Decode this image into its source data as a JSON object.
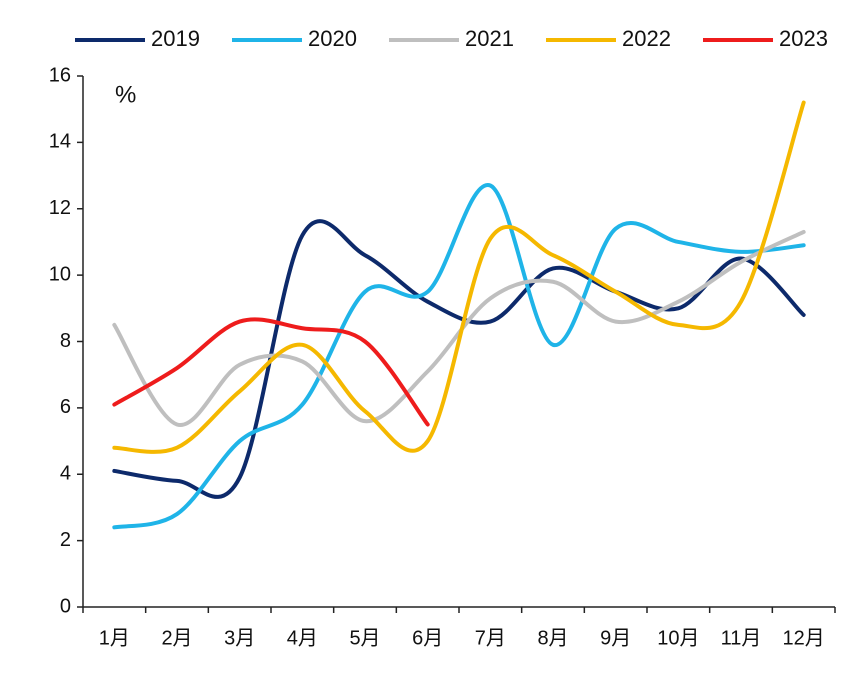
{
  "chart_data": {
    "type": "line",
    "unit_label": "%",
    "categories": [
      "1月",
      "2月",
      "3月",
      "4月",
      "5月",
      "6月",
      "7月",
      "8月",
      "9月",
      "10月",
      "11月",
      "12月"
    ],
    "series": [
      {
        "name": "2019",
        "color": "#0d2a6b",
        "values": [
          4.1,
          3.8,
          3.9,
          11.2,
          10.6,
          9.2,
          8.6,
          10.2,
          9.5,
          9.0,
          10.5,
          8.8
        ]
      },
      {
        "name": "2020",
        "color": "#1fb4e8",
        "values": [
          2.4,
          2.8,
          5.0,
          6.1,
          9.5,
          9.5,
          12.7,
          7.9,
          11.4,
          11.0,
          10.7,
          10.9
        ]
      },
      {
        "name": "2021",
        "color": "#bfbfbf",
        "values": [
          8.5,
          5.5,
          7.3,
          7.4,
          5.6,
          7.1,
          9.3,
          9.8,
          8.6,
          9.2,
          10.4,
          11.3
        ]
      },
      {
        "name": "2022",
        "color": "#f5b800",
        "values": [
          4.8,
          4.8,
          6.5,
          7.9,
          5.9,
          5.0,
          11.1,
          10.6,
          9.5,
          8.5,
          9.2,
          15.2
        ]
      },
      {
        "name": "2023",
        "color": "#ee1c1c",
        "values": [
          6.1,
          7.2,
          8.6,
          8.4,
          8.0,
          5.5,
          null,
          null,
          null,
          null,
          null,
          null
        ]
      }
    ],
    "ylim": [
      0,
      16
    ],
    "yticks": [
      0,
      2,
      4,
      6,
      8,
      10,
      12,
      14,
      16
    ],
    "legend": "top"
  }
}
